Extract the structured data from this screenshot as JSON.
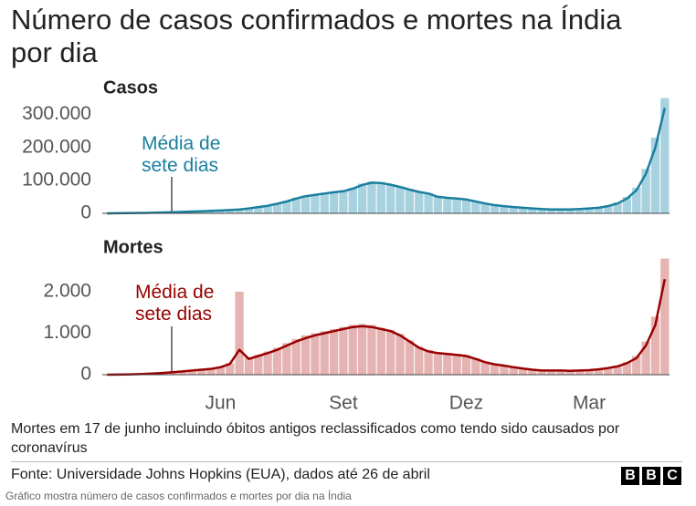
{
  "title": "Número de casos confirmados e mortes na Índia por dia",
  "note": "Mortes em 17 de junho incluindo óbitos antigos reclassificados como tendo sido causados por coronavírus",
  "source": "Fonte: Universidade Johns Hopkins (EUA), dados até 26 de abril",
  "logo": [
    "B",
    "B",
    "C"
  ],
  "caption": "Gráfico mostra número de casos confirmados e mortes por dia na Índia",
  "chart_data": [
    {
      "type": "bar",
      "title": "Casos",
      "annotation": "Média de sete dias",
      "ylim": [
        0,
        360000
      ],
      "yticks": [
        0,
        {
          "value": 100000,
          "label": "100.000"
        },
        {
          "value": 200000,
          "label": "200.000"
        },
        {
          "value": 300000,
          "label": "300.000"
        }
      ],
      "series": [
        {
          "name": "Casos",
          "type": "bar",
          "color": "#a8d2e0",
          "values": [
            100,
            350,
            700,
            1100,
            1600,
            2200,
            3000,
            3800,
            4800,
            5900,
            7000,
            8000,
            9200,
            11000,
            13500,
            16000,
            20000,
            25000,
            31000,
            38000,
            48000,
            54000,
            58000,
            63000,
            67000,
            70000,
            78000,
            90000,
            97000,
            95000,
            88000,
            82000,
            74000,
            67000,
            62000,
            50000,
            48000,
            46000,
            43000,
            37000,
            31000,
            26000,
            23000,
            20000,
            18000,
            15500,
            13500,
            12500,
            12000,
            11500,
            13500,
            16000,
            18000,
            24000,
            33000,
            50000,
            78000,
            135000,
            230000,
            350000
          ]
        },
        {
          "name": "Média de sete dias",
          "type": "line",
          "color": "#1a7f9f",
          "values": [
            100,
            300,
            600,
            1000,
            1500,
            2000,
            2800,
            3500,
            4500,
            5500,
            6500,
            7500,
            8500,
            10000,
            12000,
            15000,
            19000,
            23000,
            29000,
            36000,
            45000,
            52000,
            56000,
            60000,
            64000,
            67000,
            75000,
            86000,
            93000,
            92000,
            87000,
            80000,
            72000,
            65000,
            60000,
            50000,
            47000,
            45000,
            42000,
            36000,
            30000,
            25000,
            22000,
            19000,
            17000,
            15000,
            13000,
            12000,
            12000,
            11500,
            13000,
            15000,
            17000,
            22000,
            30000,
            45000,
            70000,
            120000,
            200000,
            320000
          ]
        }
      ]
    },
    {
      "type": "bar",
      "title": "Mortes",
      "annotation": "Média de sete dias",
      "ylim": [
        0,
        2900
      ],
      "yticks": [
        0,
        {
          "value": 1000,
          "label": "1.000"
        },
        {
          "value": 2000,
          "label": "2.000"
        }
      ],
      "categories": [
        null,
        null,
        null,
        null,
        null,
        null,
        null,
        null,
        null,
        null,
        null,
        null,
        "Jun",
        null,
        null,
        null,
        null,
        null,
        null,
        null,
        null,
        null,
        null,
        null,
        null,
        "Set",
        null,
        null,
        null,
        null,
        null,
        null,
        null,
        null,
        null,
        null,
        null,
        null,
        "Dez",
        null,
        null,
        null,
        null,
        null,
        null,
        null,
        null,
        null,
        null,
        null,
        null,
        "Mar",
        null,
        null,
        null,
        null,
        null,
        null,
        null,
        null
      ],
      "series": [
        {
          "name": "Mortes",
          "type": "bar",
          "color": "#e6b3b3",
          "values": [
            0,
            3,
            6,
            12,
            22,
            35,
            50,
            65,
            90,
            110,
            130,
            150,
            200,
            280,
            2000,
            420,
            480,
            560,
            650,
            760,
            860,
            950,
            1000,
            1050,
            1100,
            1150,
            1200,
            1220,
            1200,
            1130,
            1080,
            980,
            830,
            680,
            600,
            540,
            520,
            500,
            470,
            400,
            320,
            260,
            230,
            190,
            160,
            130,
            110,
            105,
            100,
            100,
            105,
            120,
            140,
            170,
            220,
            300,
            450,
            800,
            1400,
            2800
          ]
        },
        {
          "name": "Média de sete dias",
          "type": "line",
          "color": "#990000",
          "values": [
            0,
            2,
            5,
            10,
            20,
            30,
            45,
            60,
            80,
            100,
            120,
            140,
            180,
            260,
            600,
            380,
            450,
            520,
            600,
            700,
            800,
            880,
            950,
            1000,
            1050,
            1100,
            1150,
            1170,
            1150,
            1100,
            1050,
            950,
            800,
            650,
            560,
            520,
            500,
            480,
            450,
            380,
            300,
            250,
            220,
            180,
            150,
            120,
            100,
            100,
            100,
            95,
            100,
            110,
            130,
            160,
            200,
            280,
            400,
            700,
            1200,
            2300
          ]
        }
      ]
    }
  ]
}
